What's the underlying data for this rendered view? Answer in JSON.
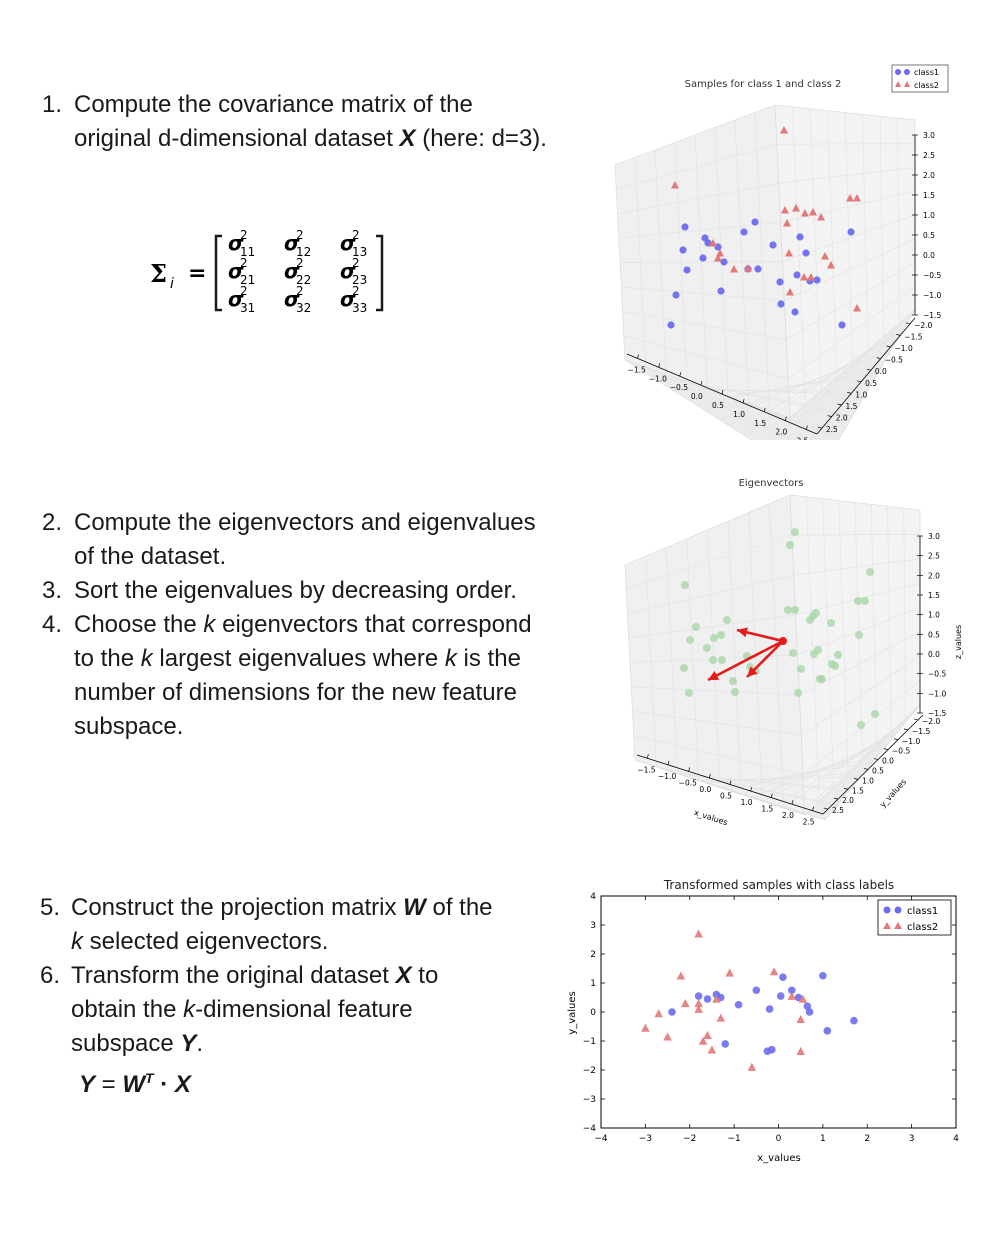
{
  "steps": {
    "s1": {
      "num": "1.",
      "l1": "Compute the covariance matrix  of the",
      "l2a": "original d-dimensional dataset ",
      "l2b": "X",
      "l2c": " (here: d=3)."
    },
    "s2": {
      "num": "2.",
      "l1": "Compute the eigenvectors and eigenvalues",
      "l2": "of the dataset."
    },
    "s3": {
      "num": "3.",
      "l1": "Sort the eigenvalues by decreasing order."
    },
    "s4": {
      "num": "4.",
      "l1a": "Choose the ",
      "k": "k",
      "l1b": " eigenvectors that correspond",
      "l2a": "to the ",
      "l2b": " largest eigenvalues where ",
      "l2c": " is the",
      "l3": "number of dimensions for the new feature",
      "l4": "subspace."
    },
    "s5": {
      "num": "5.",
      "l1a": "Construct the projection matrix ",
      "W": "W",
      "l1b": " of the",
      "l2b": " selected eigenvectors."
    },
    "s6": {
      "num": "6.",
      "l1a": "Transform the original dataset ",
      "X": "X",
      "l1b": "  to",
      "l2a": "obtain the ",
      "l2b": "-dimensional feature",
      "l3a": "subspace ",
      "Y": "Y",
      "l3b": "."
    },
    "formula": {
      "Y": "Y",
      "eq": " = ",
      "W": "W",
      "T": "T",
      "dot": " · ",
      "X": "X"
    }
  },
  "matrix": {
    "label": "Σ",
    "sub": "i",
    "eq": "=",
    "rows": [
      [
        "σ",
        "σ",
        "σ"
      ],
      [
        "σ",
        "σ",
        "σ"
      ],
      [
        "σ",
        "σ",
        "σ"
      ]
    ],
    "sup": "2",
    "subs": [
      [
        "11",
        "12",
        "13"
      ],
      [
        "21",
        "22",
        "23"
      ],
      [
        "31",
        "32",
        "33"
      ]
    ]
  },
  "chart1": {
    "title": "Samples for class 1 and class 2",
    "legend": [
      "class1",
      "class2"
    ],
    "zticks": [
      "3.0",
      "2.5",
      "2.0",
      "1.5",
      "1.0",
      "0.5",
      "0.0",
      "−0.5",
      "−1.0",
      "−1.5"
    ],
    "xticks": [
      "−1.5",
      "−1.0",
      "−0.5",
      "0.0",
      "0.5",
      "1.0",
      "1.5",
      "2.0",
      "2.5"
    ],
    "yticks": [
      "2.5",
      "2.0",
      "1.5",
      "1.0",
      "0.5",
      "0.0",
      "−0.5",
      "−1.0",
      "−1.5",
      "−2.0"
    ]
  },
  "chart2": {
    "title": "Eigenvectors",
    "zlabel": "z_values",
    "xlabel": "x_values",
    "ylabel": "y_values",
    "zticks": [
      "3.0",
      "2.5",
      "2.0",
      "1.5",
      "1.0",
      "0.5",
      "0.0",
      "−0.5",
      "−1.0",
      "−1.5"
    ],
    "xticks": [
      "−1.5",
      "−1.0",
      "−0.5",
      "0.0",
      "0.5",
      "1.0",
      "1.5",
      "2.0",
      "2.5"
    ],
    "yticks": [
      "2.5",
      "2.0",
      "1.5",
      "1.0",
      "0.5",
      "0.0",
      "−0.5",
      "−1.0",
      "−1.5",
      "−2.0"
    ]
  },
  "chart_data": {
    "type": "scatter",
    "title": "Transformed samples with class labels",
    "xlabel": "x_values",
    "ylabel": "y_values",
    "xlim": [
      -4,
      4
    ],
    "ylim": [
      -4,
      4
    ],
    "xticks": [
      -4,
      -3,
      -2,
      -1,
      0,
      1,
      2,
      3,
      4
    ],
    "yticks": [
      -4,
      -3,
      -2,
      -1,
      0,
      1,
      2,
      3,
      4
    ],
    "legend_position": "top-right",
    "series": [
      {
        "name": "class1",
        "color": "#6b6bef",
        "marker": "circle",
        "points": [
          [
            -2.4,
            0.0
          ],
          [
            -1.8,
            0.55
          ],
          [
            -1.6,
            0.45
          ],
          [
            -1.4,
            0.6
          ],
          [
            -1.3,
            0.5
          ],
          [
            -0.9,
            0.25
          ],
          [
            -1.2,
            -1.1
          ],
          [
            -0.5,
            0.75
          ],
          [
            -0.2,
            0.1
          ],
          [
            0.05,
            0.55
          ],
          [
            0.1,
            1.2
          ],
          [
            0.3,
            0.75
          ],
          [
            0.45,
            0.5
          ],
          [
            0.65,
            0.2
          ],
          [
            1.0,
            1.25
          ],
          [
            1.1,
            -0.65
          ],
          [
            1.7,
            -0.3
          ],
          [
            -0.15,
            -1.3
          ],
          [
            -0.25,
            -1.35
          ],
          [
            0.7,
            0.0
          ]
        ]
      },
      {
        "name": "class2",
        "color": "#e27878",
        "marker": "triangle",
        "points": [
          [
            -1.8,
            2.7
          ],
          [
            -3.0,
            -0.55
          ],
          [
            -2.7,
            -0.05
          ],
          [
            -2.5,
            -0.85
          ],
          [
            -2.2,
            1.25
          ],
          [
            -2.1,
            0.3
          ],
          [
            -1.8,
            0.1
          ],
          [
            -1.7,
            -1.0
          ],
          [
            -1.6,
            -0.8
          ],
          [
            -1.5,
            -1.3
          ],
          [
            -1.4,
            0.45
          ],
          [
            -1.3,
            -0.2
          ],
          [
            -1.1,
            1.35
          ],
          [
            -0.6,
            -1.9
          ],
          [
            -0.1,
            1.4
          ],
          [
            0.3,
            0.55
          ],
          [
            0.5,
            -0.25
          ],
          [
            0.5,
            -1.35
          ],
          [
            0.55,
            0.45
          ],
          [
            -1.8,
            0.3
          ]
        ]
      }
    ]
  }
}
